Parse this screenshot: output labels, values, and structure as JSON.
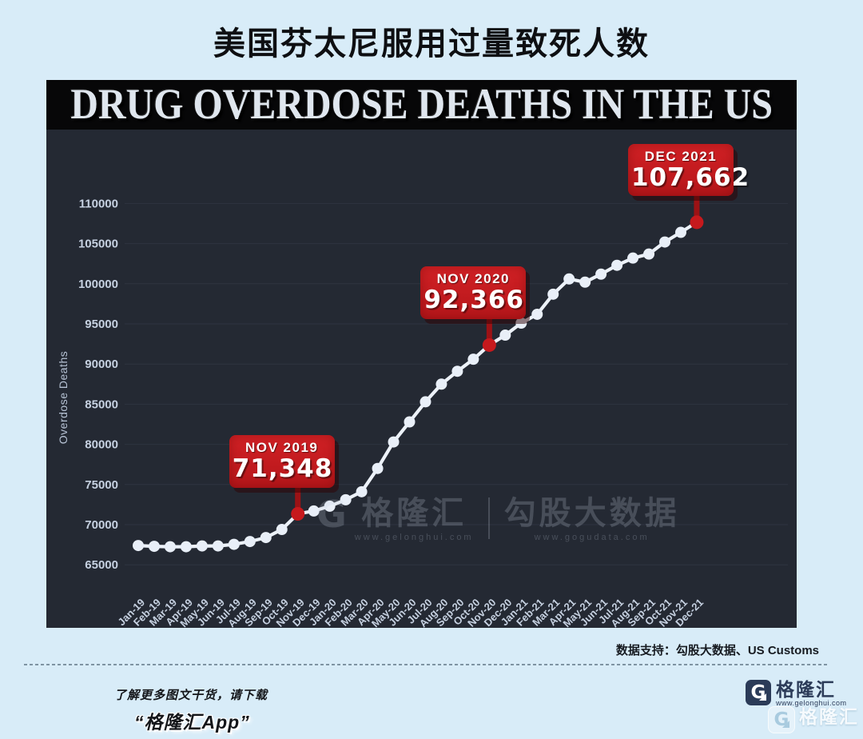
{
  "page": {
    "title": "美国芬太尼服用过量致死人数"
  },
  "chart_data": {
    "type": "line",
    "title": "DRUG OVERDOSE DEATHS IN THE US",
    "xlabel": "",
    "ylabel": "Overdose Deaths",
    "ylim": [
      63500,
      113500
    ],
    "yticks": [
      65000,
      70000,
      75000,
      80000,
      85000,
      90000,
      95000,
      100000,
      105000,
      110000
    ],
    "grid": true,
    "legend_position": "none",
    "background_color": "#242933",
    "line_color": "#edf2f9",
    "highlight_color": "#c6191d",
    "categories": [
      "Jan-19",
      "Feb-19",
      "Mar-19",
      "Apr-19",
      "May-19",
      "Jun-19",
      "Jul-19",
      "Aug-19",
      "Sep-19",
      "Oct-19",
      "Nov-19",
      "Dec-19",
      "Jan-20",
      "Feb-20",
      "Mar-20",
      "Apr-20",
      "May-20",
      "Jun-20",
      "Jul-20",
      "Aug-20",
      "Sep-20",
      "Oct-20",
      "Nov-20",
      "Dec-20",
      "Jan-21",
      "Feb-21",
      "Mar-21",
      "Apr-21",
      "May-21",
      "Jun-21",
      "Jul-21",
      "Aug-21",
      "Sep-21",
      "Oct-21",
      "Nov-21",
      "Dec-21"
    ],
    "values": [
      67400,
      67300,
      67250,
      67250,
      67350,
      67350,
      67550,
      67900,
      68400,
      69400,
      71348,
      71700,
      72300,
      73100,
      74100,
      77000,
      80300,
      82800,
      85300,
      87500,
      89100,
      90600,
      92366,
      93600,
      95100,
      96200,
      98700,
      100600,
      100200,
      101200,
      102300,
      103200,
      103700,
      105200,
      106400,
      107662
    ],
    "annotations": [
      {
        "category": "Nov-19",
        "label": "NOV 2019",
        "value": 71348,
        "value_display": "71,348"
      },
      {
        "category": "Nov-20",
        "label": "NOV 2020",
        "value": 92366,
        "value_display": "92,366"
      },
      {
        "category": "Dec-21",
        "label": "DEC 2021",
        "value": 107662,
        "value_display": "107,662"
      }
    ],
    "watermark": {
      "g_glyph": "G",
      "brand": "格隆汇",
      "brand_url": "www.gelonghui.com",
      "partner": "勾股大数据",
      "partner_url": "www.gogudata.com"
    }
  },
  "footer": {
    "data_support": "数据支持：勾股大数据、US Customs",
    "promo_line1": "了解更多图文干货，请下载",
    "promo_line2": "“格隆汇App”",
    "logo": {
      "g_glyph": "G",
      "name": "格隆汇",
      "url": "www.gelonghui.com"
    }
  }
}
